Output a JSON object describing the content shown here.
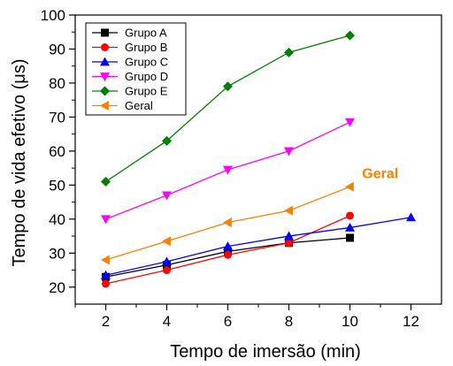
{
  "chart_data": {
    "type": "line",
    "title": "",
    "xlabel": "Tempo de imersão (min)",
    "ylabel": "Tempo de vida efetivo (μs)",
    "xlim": [
      1,
      13
    ],
    "ylim": [
      15,
      100
    ],
    "xticks": [
      2,
      4,
      6,
      8,
      10,
      12
    ],
    "yticks": [
      20,
      30,
      40,
      50,
      60,
      70,
      80,
      90,
      100
    ],
    "grid": false,
    "legend_position": "top-left",
    "series": [
      {
        "name": "Grupo A",
        "color": "#000000",
        "marker": "square",
        "x": [
          2,
          4,
          6,
          8,
          10
        ],
        "y": [
          23,
          26.5,
          30.5,
          33,
          34.5
        ]
      },
      {
        "name": "Grupo B",
        "color": "#ff0000",
        "marker": "circle",
        "x": [
          2,
          4,
          6,
          8,
          10
        ],
        "y": [
          21,
          25,
          29.5,
          33,
          41
        ]
      },
      {
        "name": "Grupo C",
        "color": "#0000ff",
        "marker": "triangle-up",
        "x": [
          2,
          4,
          6,
          8,
          10,
          12
        ],
        "y": [
          23.5,
          27.5,
          32,
          35,
          37.5,
          40.5
        ]
      },
      {
        "name": "Grupo D",
        "color": "#ff00ff",
        "marker": "triangle-down",
        "x": [
          2,
          4,
          6,
          8,
          10
        ],
        "y": [
          40,
          47,
          54.5,
          60,
          68.5
        ]
      },
      {
        "name": "Grupo E",
        "color": "#008000",
        "marker": "diamond",
        "x": [
          2,
          4,
          6,
          8,
          10
        ],
        "y": [
          51,
          63,
          79,
          89,
          94
        ]
      },
      {
        "name": "Geral",
        "color": "#ff8000",
        "marker": "triangle-left",
        "x": [
          2,
          4,
          6,
          8,
          10
        ],
        "y": [
          28,
          33.5,
          39,
          42.5,
          49.5
        ]
      }
    ],
    "annotations": [
      {
        "text": "Geral",
        "color": "#ff8000",
        "x": 10.4,
        "y": 52
      }
    ]
  }
}
